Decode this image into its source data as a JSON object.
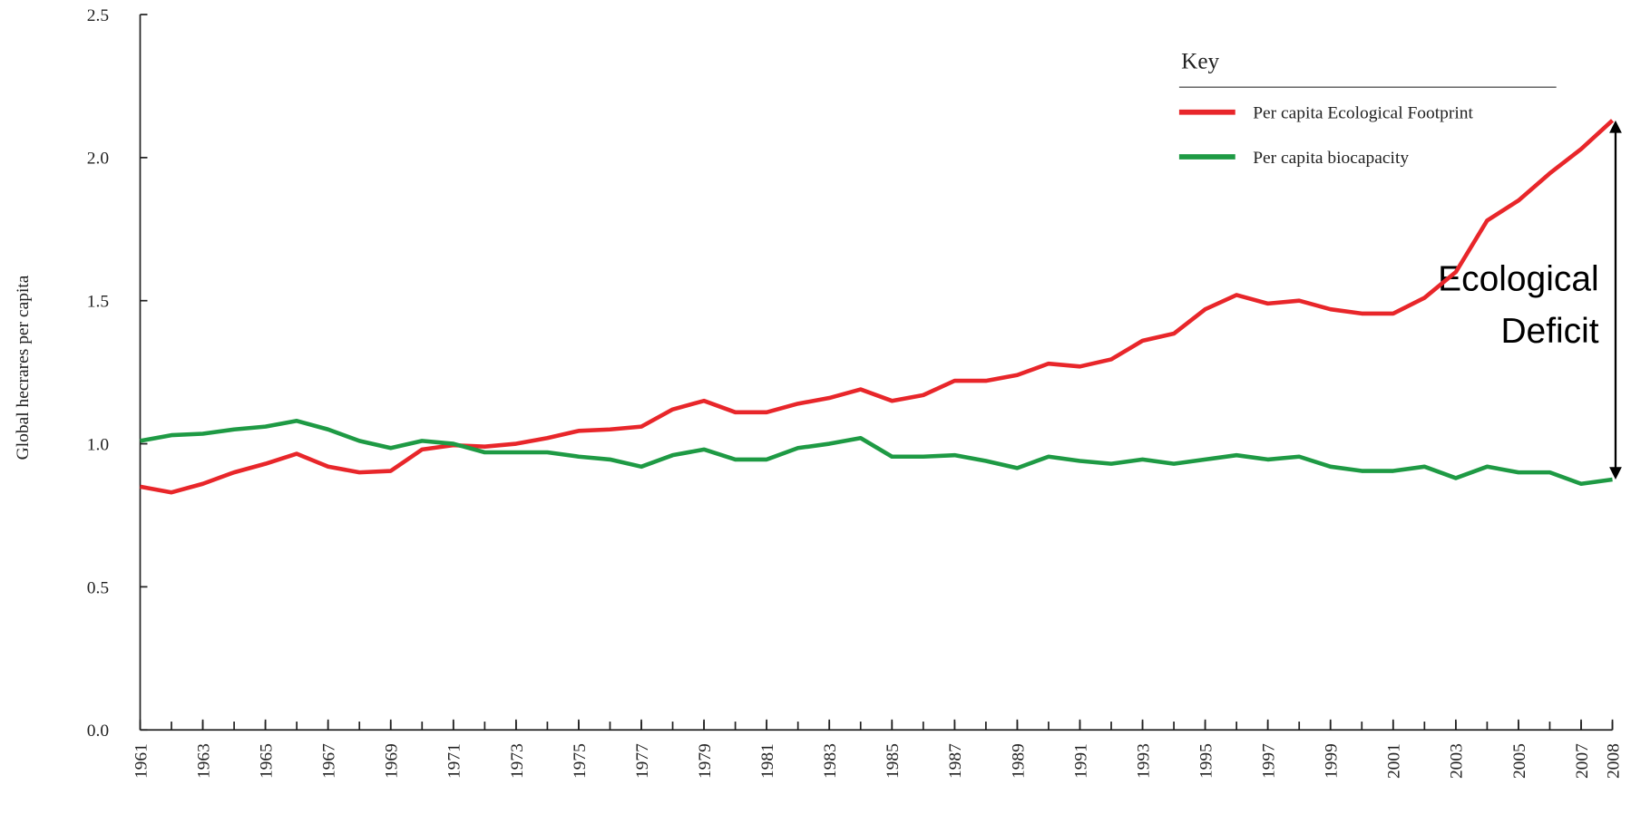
{
  "chart_data": {
    "type": "line",
    "ylabel": "Global hecrares per capita",
    "legend_title": "Key",
    "annotation": [
      "Ecological",
      "Deficit"
    ],
    "x": [
      1961,
      1962,
      1963,
      1964,
      1965,
      1966,
      1967,
      1968,
      1969,
      1970,
      1971,
      1972,
      1973,
      1974,
      1975,
      1976,
      1977,
      1978,
      1979,
      1980,
      1981,
      1982,
      1983,
      1984,
      1985,
      1986,
      1987,
      1988,
      1989,
      1990,
      1991,
      1992,
      1993,
      1994,
      1995,
      1996,
      1997,
      1998,
      1999,
      2000,
      2001,
      2002,
      2003,
      2004,
      2005,
      2006,
      2007,
      2008
    ],
    "series": [
      {
        "name": "Per capita Ecological Footprint",
        "color": "#e8262a",
        "values": [
          0.85,
          0.83,
          0.86,
          0.9,
          0.93,
          0.965,
          0.92,
          0.9,
          0.905,
          0.98,
          0.995,
          0.99,
          1.0,
          1.02,
          1.045,
          1.05,
          1.06,
          1.12,
          1.15,
          1.11,
          1.11,
          1.14,
          1.16,
          1.19,
          1.15,
          1.17,
          1.22,
          1.22,
          1.24,
          1.28,
          1.27,
          1.295,
          1.36,
          1.385,
          1.47,
          1.52,
          1.49,
          1.5,
          1.47,
          1.455,
          1.455,
          1.51,
          1.6,
          1.78,
          1.85,
          1.945,
          2.03,
          2.13
        ]
      },
      {
        "name": "Per capita biocapacity",
        "color": "#1e9a44",
        "values": [
          1.01,
          1.03,
          1.035,
          1.05,
          1.06,
          1.08,
          1.05,
          1.01,
          0.985,
          1.01,
          1.0,
          0.97,
          0.97,
          0.97,
          0.955,
          0.945,
          0.92,
          0.96,
          0.98,
          0.945,
          0.945,
          0.985,
          1.0,
          1.02,
          0.955,
          0.955,
          0.96,
          0.94,
          0.915,
          0.955,
          0.94,
          0.93,
          0.945,
          0.93,
          0.945,
          0.96,
          0.945,
          0.955,
          0.92,
          0.905,
          0.905,
          0.92,
          0.88,
          0.92,
          0.9,
          0.9,
          0.86,
          0.875
        ]
      }
    ],
    "xlim": [
      1961,
      2008
    ],
    "xticks": [
      1961,
      1963,
      1965,
      1967,
      1969,
      1971,
      1973,
      1975,
      1977,
      1979,
      1981,
      1983,
      1985,
      1987,
      1989,
      1991,
      1993,
      1995,
      1997,
      1999,
      2001,
      2003,
      2005,
      2007,
      2008
    ],
    "ylim": [
      0,
      2.5
    ],
    "yticks": [
      {
        "value": 0,
        "label": "0.0"
      },
      0.5,
      {
        "value": 1,
        "label": "1.0"
      },
      1.5,
      {
        "value": 2,
        "label": "2.0"
      },
      2.5
    ],
    "grid": false,
    "legend": "upper right"
  }
}
